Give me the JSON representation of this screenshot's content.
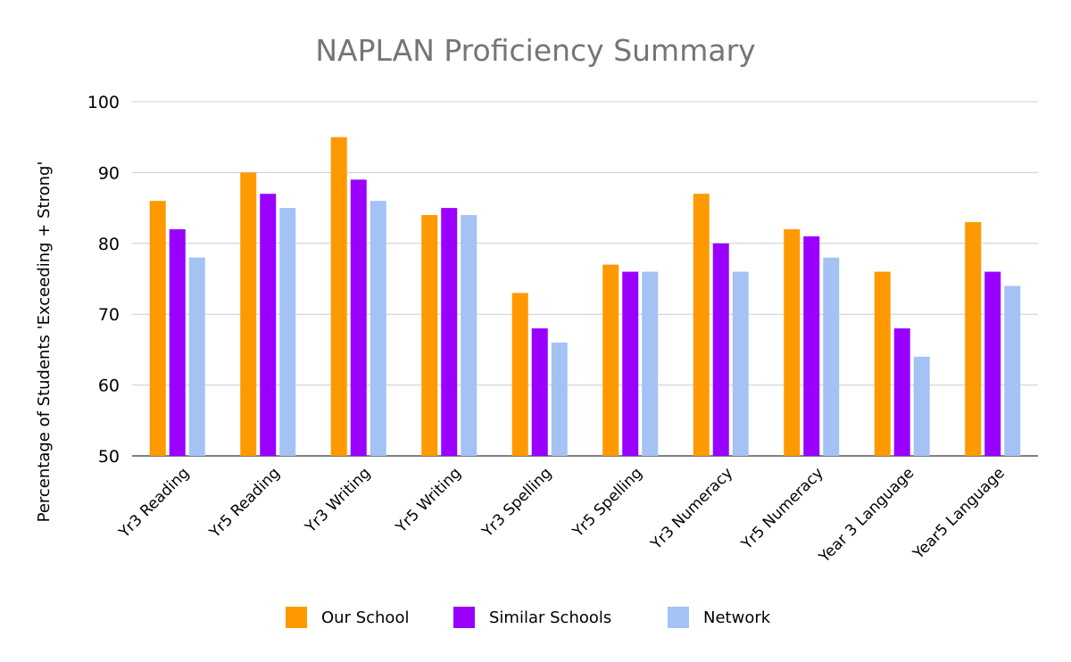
{
  "chart_data": {
    "type": "bar",
    "title": "NAPLAN Proficiency Summary",
    "ylabel": "Percentage of Students 'Exceeding + Strong'",
    "xlabel": "",
    "ylim": [
      50,
      100
    ],
    "yticks": [
      50,
      60,
      70,
      80,
      90,
      100
    ],
    "grid": true,
    "legend_position": "bottom",
    "categories": [
      "Yr3 Reading",
      "Yr5 Reading",
      "Yr3 Writing",
      "Yr5 Writing",
      "Yr3 Spelling",
      "Yr5 Spelling",
      "Yr3 Numeracy",
      "Yr5 Numeracy",
      "Year 3 Language",
      "Year5 Language"
    ],
    "series": [
      {
        "name": "Our School",
        "color": "#ff9900",
        "values": [
          86,
          90,
          95,
          84,
          73,
          77,
          87,
          82,
          76,
          83
        ]
      },
      {
        "name": "Similar Schools",
        "color": "#9900ff",
        "values": [
          82,
          87,
          89,
          85,
          68,
          76,
          80,
          81,
          68,
          76
        ]
      },
      {
        "name": "Network",
        "color": "#a4c2f4",
        "values": [
          78,
          85,
          86,
          84,
          66,
          76,
          76,
          78,
          64,
          74
        ]
      }
    ]
  }
}
